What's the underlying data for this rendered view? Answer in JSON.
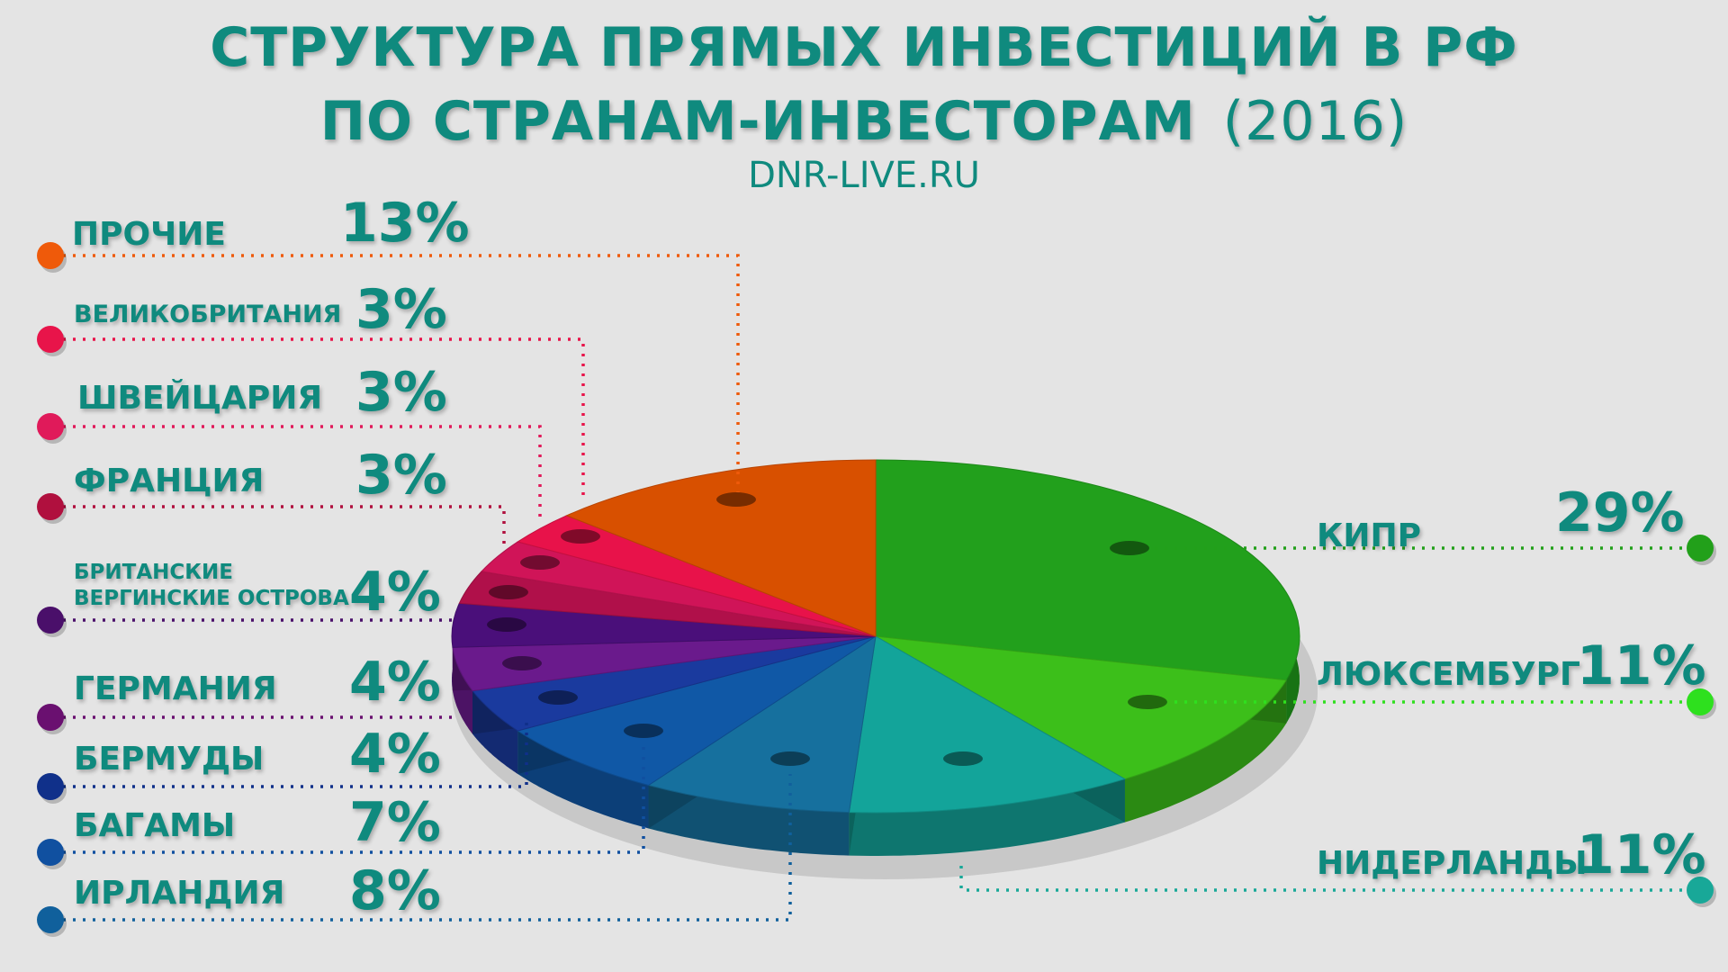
{
  "chart_data": {
    "type": "pie",
    "title_line1": "СТРУКТУРА ПРЯМЫХ ИНВЕСТИЦИЙ В РФ",
    "title_line2": "ПО СТРАНАМ-ИНВЕСТОРАМ",
    "year": "(2016)",
    "source": "DNR-LIVE.RU",
    "unit": "%",
    "slices": [
      {
        "label": "КИПР",
        "value": 29,
        "value_label": "29%",
        "color": "#22a01c",
        "dot": "#22a01a"
      },
      {
        "label": "ЛЮКСЕМБУРГ",
        "value": 11,
        "value_label": "11%",
        "color": "#3cbf1a",
        "dot": "#2ee01e"
      },
      {
        "label": "НИДЕРЛАНДЫ",
        "value": 11,
        "value_label": "11%",
        "color": "#13a49a",
        "dot": "#18a898"
      },
      {
        "label": "ИРЛАНДИЯ",
        "value": 8,
        "value_label": "8%",
        "color": "#16709e",
        "dot": "#10609c"
      },
      {
        "label": "БАГАМЫ",
        "value": 7,
        "value_label": "7%",
        "color": "#1058a6",
        "dot": "#1050a0"
      },
      {
        "label": "БЕРМУДЫ",
        "value": 4,
        "value_label": "4%",
        "color": "#1a3a9e",
        "dot": "#10308a"
      },
      {
        "label": "ГЕРМАНИЯ",
        "value": 4,
        "value_label": "4%",
        "color": "#6a1a8c",
        "dot": "#6a1070"
      },
      {
        "label": "БРИТАНСКИЕ ВЕРГИНСКИЕ ОСТРОВА",
        "label_line1": "БРИТАНСКИЕ",
        "label_line2": "ВЕРГИНСКИЕ ОСТРОВА",
        "value": 4,
        "value_label": "4%",
        "color": "#4a0f7a",
        "dot": "#4a0f6a"
      },
      {
        "label": "ФРАНЦИЯ",
        "value": 3,
        "value_label": "3%",
        "color": "#b0104a",
        "dot": "#b0103e"
      },
      {
        "label": "ШВЕЙЦАРИЯ",
        "value": 3,
        "value_label": "3%",
        "color": "#d01458",
        "dot": "#e01a5a"
      },
      {
        "label": "ВЕЛИКОБРИТАНИЯ",
        "value": 3,
        "value_label": "3%",
        "color": "#e8124a",
        "dot": "#e8144a"
      },
      {
        "label": "ПРОЧИЕ",
        "value": 13,
        "value_label": "13%",
        "color": "#d85000",
        "dot": "#ef5a0a"
      }
    ]
  }
}
